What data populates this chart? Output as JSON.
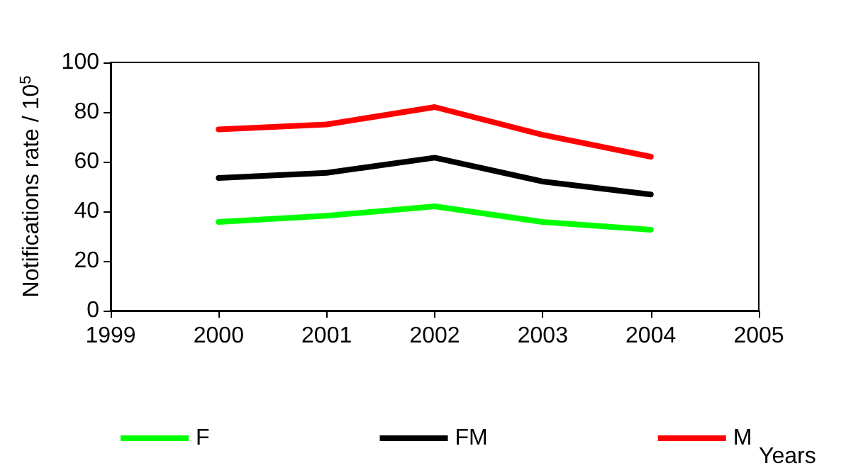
{
  "chart_data": {
    "type": "line",
    "xlabel": "Years",
    "ylabel": "Notifications rate / 10$^{5}$",
    "x": [
      2000,
      2001,
      2002,
      2003,
      2004
    ],
    "series": [
      {
        "name": "F",
        "color": "#00ff00",
        "values": [
          35.7,
          38.2,
          42,
          35.7,
          32.6
        ]
      },
      {
        "name": "FM",
        "color": "#000000",
        "values": [
          53.4,
          55.5,
          61.6,
          52,
          46.8
        ]
      },
      {
        "name": "M",
        "color": "#ff0000",
        "values": [
          73,
          75,
          82,
          70.8,
          62
        ]
      }
    ],
    "xlim": [
      1999,
      2005
    ],
    "xticks": [
      1999,
      2000,
      2001,
      2002,
      2003,
      2004,
      2005
    ],
    "ylim": [
      0,
      100
    ],
    "yticks": [
      0,
      20,
      40,
      60,
      80,
      100
    ],
    "grid": false,
    "legend": "bottom",
    "marker": "none",
    "line_style": "solid"
  }
}
